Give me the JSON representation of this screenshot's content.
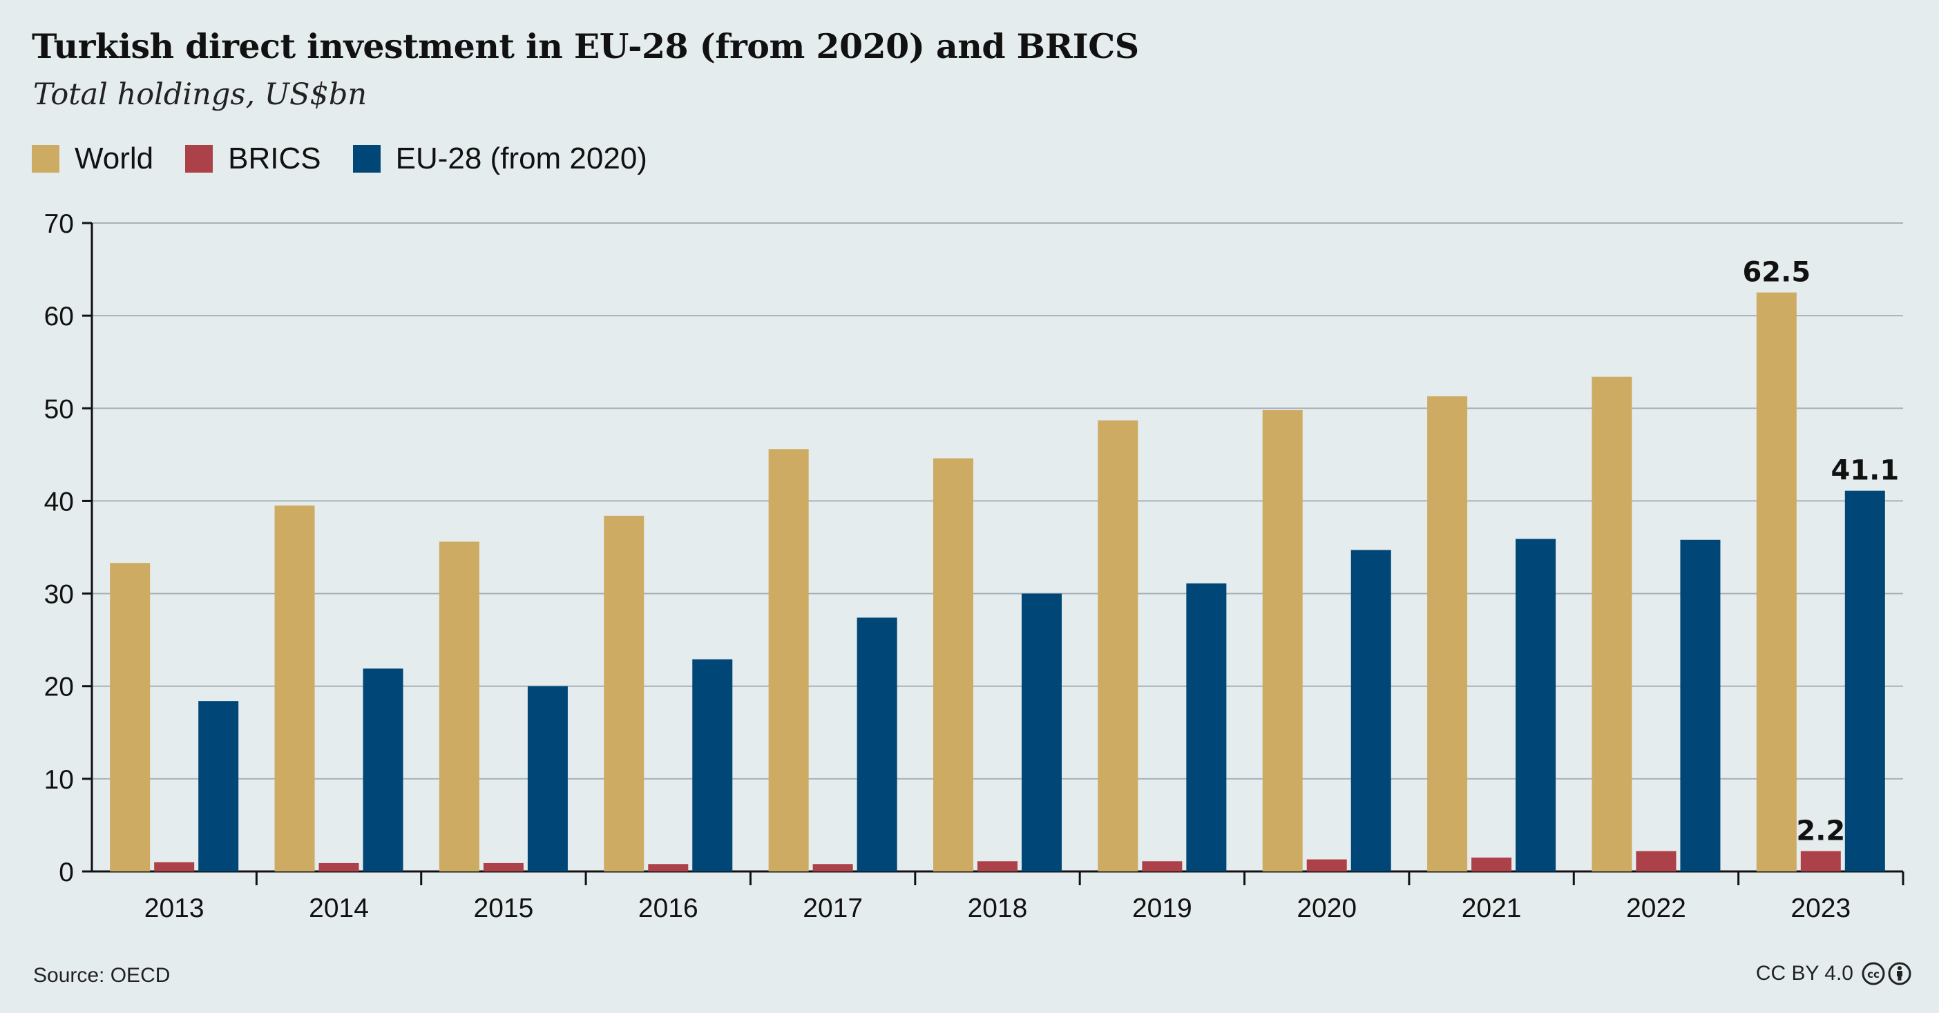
{
  "title": "Turkish direct investment in EU-28 (from 2020) and BRICS",
  "subtitle": "Total holdings, US$bn",
  "source": "Source: OECD",
  "license": "CC BY 4.0",
  "colors": {
    "World": "#cdab62",
    "BRICS": "#ad4149",
    "EU": "#004676",
    "background": "#e5ecee",
    "grid": "#a7b2b8"
  },
  "legend": [
    {
      "label": "World",
      "color": "#cdab62"
    },
    {
      "label": "BRICS",
      "color": "#ad4149"
    },
    {
      "label": "EU-28 (from 2020)",
      "color": "#004676"
    }
  ],
  "chart_data": {
    "type": "bar",
    "title": "Turkish direct investment in EU-28 (from 2020) and BRICS",
    "subtitle": "Total holdings, US$bn",
    "categories": [
      "2013",
      "2014",
      "2015",
      "2016",
      "2017",
      "2018",
      "2019",
      "2020",
      "2021",
      "2022",
      "2023"
    ],
    "series": [
      {
        "name": "World",
        "values": [
          33.3,
          39.5,
          35.6,
          38.4,
          45.6,
          44.6,
          48.7,
          49.8,
          51.3,
          53.4,
          62.5
        ]
      },
      {
        "name": "BRICS",
        "values": [
          1.0,
          0.9,
          0.9,
          0.8,
          0.8,
          1.1,
          1.1,
          1.3,
          1.5,
          2.2,
          2.2
        ]
      },
      {
        "name": "EU-28 (from 2020)",
        "values": [
          18.4,
          21.9,
          20.0,
          22.9,
          27.4,
          30.0,
          31.1,
          34.7,
          35.9,
          35.8,
          41.1
        ]
      }
    ],
    "ylim": [
      0,
      70
    ],
    "yticks": [
      0,
      10,
      20,
      30,
      40,
      50,
      60,
      70
    ],
    "grid": true,
    "legend_position": "top-left",
    "annotations": [
      {
        "category": "2023",
        "series": "World",
        "text": "62.5"
      },
      {
        "category": "2023",
        "series": "BRICS",
        "text": "2.2"
      },
      {
        "category": "2023",
        "series": "EU-28 (from 2020)",
        "text": "41.1"
      }
    ]
  }
}
